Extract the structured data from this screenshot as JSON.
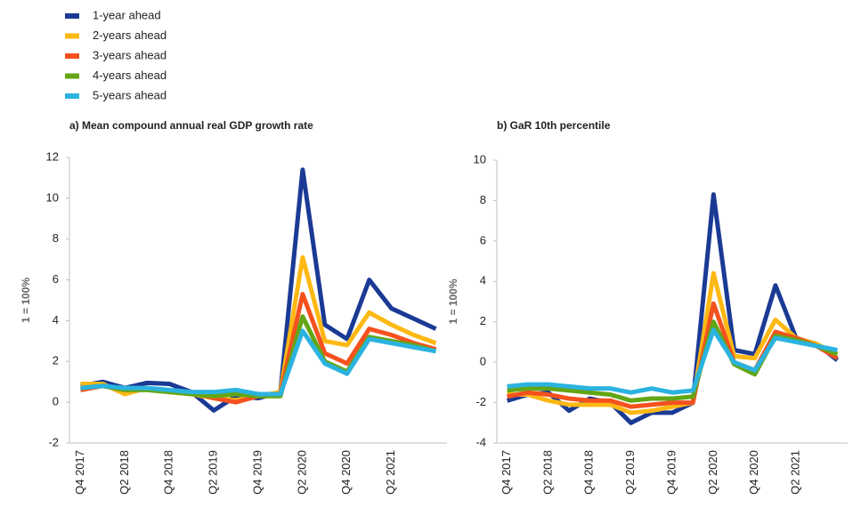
{
  "chart_data": [
    {
      "type": "line",
      "title": "a) Mean compound annual real GDP growth rate",
      "ylabel": "1 = 100%",
      "categories": [
        "Q4 2017",
        null,
        "Q2 2018",
        null,
        "Q4 2018",
        null,
        "Q2 2019",
        null,
        "Q4 2019",
        null,
        "Q2 2020",
        null,
        "Q4 2020",
        null,
        "Q2 2021",
        null,
        null
      ],
      "ylim": [
        -2,
        12
      ],
      "yticks": [
        -2,
        0,
        2,
        4,
        6,
        8,
        10,
        12
      ],
      "series": [
        {
          "name": "1-year ahead",
          "color": "#1a3a94",
          "values": [
            0.8,
            1.0,
            0.7,
            0.95,
            0.9,
            0.5,
            -0.4,
            0.3,
            0.2,
            0.5,
            11.4,
            3.8,
            3.1,
            6.0,
            4.6,
            4.1,
            3.6
          ]
        },
        {
          "name": "2-years ahead",
          "color": "#fdb813",
          "values": [
            0.9,
            0.9,
            0.4,
            0.7,
            0.5,
            0.4,
            0.2,
            0.1,
            0.3,
            0.5,
            7.1,
            3.0,
            2.8,
            4.4,
            3.8,
            3.3,
            2.9
          ]
        },
        {
          "name": "3-years ahead",
          "color": "#f4511e",
          "values": [
            0.6,
            0.8,
            0.6,
            0.7,
            0.5,
            0.5,
            0.2,
            0.0,
            0.3,
            0.4,
            5.3,
            2.4,
            1.9,
            3.6,
            3.3,
            2.9,
            2.6
          ]
        },
        {
          "name": "4-years ahead",
          "color": "#63a615",
          "values": [
            0.7,
            0.8,
            0.6,
            0.6,
            0.5,
            0.4,
            0.3,
            0.4,
            0.3,
            0.3,
            4.2,
            2.0,
            1.5,
            3.2,
            3.0,
            2.8,
            2.5
          ]
        },
        {
          "name": "5-years ahead",
          "color": "#2bb3e0",
          "values": [
            0.7,
            0.8,
            0.7,
            0.7,
            0.6,
            0.5,
            0.5,
            0.6,
            0.4,
            0.4,
            3.5,
            1.9,
            1.4,
            3.1,
            2.9,
            2.7,
            2.5
          ]
        }
      ]
    },
    {
      "type": "line",
      "title": "b) GaR 10th percentile",
      "ylabel": "1 = 100%",
      "categories": [
        "Q4 2017",
        null,
        "Q2 2018",
        null,
        "Q4 2018",
        null,
        "Q2 2019",
        null,
        "Q4 2019",
        null,
        "Q2 2020",
        null,
        "Q4 2020",
        null,
        "Q2 2021",
        null,
        null
      ],
      "ylim": [
        -4,
        10
      ],
      "yticks": [
        -4,
        -2,
        0,
        2,
        4,
        6,
        8,
        10
      ],
      "series": [
        {
          "name": "1-year ahead",
          "color": "#1a3a94",
          "values": [
            -1.9,
            -1.6,
            -1.5,
            -2.4,
            -1.8,
            -2.0,
            -3.0,
            -2.5,
            -2.5,
            -2.0,
            8.3,
            0.6,
            0.4,
            3.8,
            1.2,
            0.9,
            0.1
          ]
        },
        {
          "name": "2-years ahead",
          "color": "#fdb813",
          "values": [
            -1.6,
            -1.6,
            -1.9,
            -2.1,
            -2.1,
            -2.1,
            -2.5,
            -2.4,
            -2.2,
            -2.0,
            4.4,
            0.3,
            0.2,
            2.1,
            1.2,
            0.9,
            0.4
          ]
        },
        {
          "name": "3-years ahead",
          "color": "#f4511e",
          "values": [
            -1.7,
            -1.5,
            -1.6,
            -1.8,
            -1.9,
            -1.9,
            -2.2,
            -2.1,
            -2.0,
            -2.0,
            2.9,
            0.0,
            -0.4,
            1.5,
            1.2,
            0.8,
            0.2
          ]
        },
        {
          "name": "4-years ahead",
          "color": "#63a615",
          "values": [
            -1.4,
            -1.3,
            -1.3,
            -1.4,
            -1.5,
            -1.6,
            -1.9,
            -1.8,
            -1.8,
            -1.7,
            2.0,
            -0.1,
            -0.6,
            1.3,
            1.1,
            0.8,
            0.4
          ]
        },
        {
          "name": "5-years ahead",
          "color": "#2bb3e0",
          "values": [
            -1.2,
            -1.1,
            -1.1,
            -1.2,
            -1.3,
            -1.3,
            -1.5,
            -1.3,
            -1.5,
            -1.4,
            1.6,
            0.0,
            -0.4,
            1.2,
            1.0,
            0.8,
            0.6
          ]
        }
      ]
    }
  ]
}
